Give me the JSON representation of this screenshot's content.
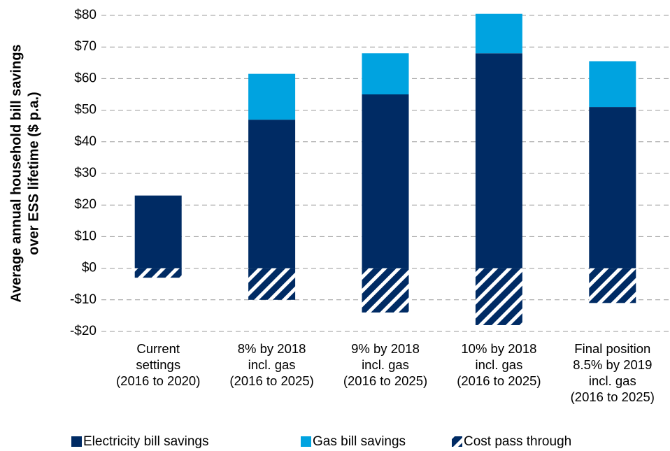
{
  "chart_data": {
    "type": "bar",
    "ylabel": [
      "Average annual household bill savings",
      "over ESS lifetime ($ p.a.)"
    ],
    "categories": [
      "Current\nsettings\n(2016 to 2020)",
      "8% by 2018\nincl. gas\n(2016 to 2025)",
      "9% by 2018\nincl. gas\n(2016 to 2025)",
      "10% by 2018\nincl. gas\n(2016 to 2025)",
      "Final position\n8.5% by 2019\nincl. gas\n(2016 to 2025)"
    ],
    "series": [
      {
        "name": "Electricity bill savings",
        "color": "#002b64",
        "values": [
          23,
          47,
          55,
          68,
          51
        ]
      },
      {
        "name": "Gas bill savings",
        "color": "#00a3e0",
        "values": [
          null,
          14.5,
          13,
          12.5,
          14.5
        ]
      },
      {
        "name": "Cost pass through",
        "color": "#002b64",
        "hatch": true,
        "values": [
          -3,
          -10,
          -14,
          -18,
          -11
        ]
      }
    ],
    "ylim": [
      -20,
      80
    ],
    "yticks": [
      {
        "value": -20,
        "label": "-$20"
      },
      {
        "value": -10,
        "label": "-$10"
      },
      {
        "value": 0,
        "label": "$0"
      },
      {
        "value": 10,
        "label": "$10"
      },
      {
        "value": 20,
        "label": "$20"
      },
      {
        "value": 30,
        "label": "$30"
      },
      {
        "value": 40,
        "label": "$40"
      },
      {
        "value": 50,
        "label": "$50"
      },
      {
        "value": 60,
        "label": "$60"
      },
      {
        "value": 70,
        "label": "$70"
      },
      {
        "value": 80,
        "label": "$80"
      }
    ],
    "grid": true
  }
}
